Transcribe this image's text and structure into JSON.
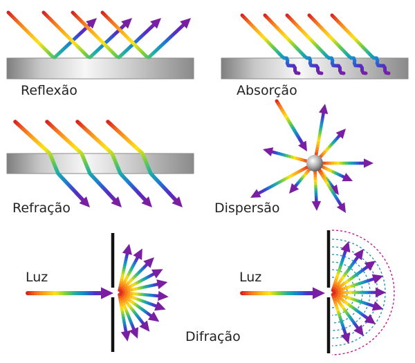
{
  "labels": {
    "reflection": "Reflexão",
    "absorption": "Absorção",
    "refraction": "Refração",
    "dispersion": "Dispersão",
    "light_left": "Luz",
    "light_right": "Luz",
    "diffraction": "Difração"
  },
  "colors": {
    "spectrum": [
      "#d7191c",
      "#f46d1e",
      "#fdae1a",
      "#ffe31a",
      "#7fd13b",
      "#1fb0a3",
      "#1a7fd4",
      "#5030c8",
      "#7a1fa2"
    ],
    "slab_edge": "#8a8a8a",
    "barrier": "#111111",
    "wavefront_outer": "#c0198f",
    "wavefront_inner": "#1a8fb0"
  }
}
